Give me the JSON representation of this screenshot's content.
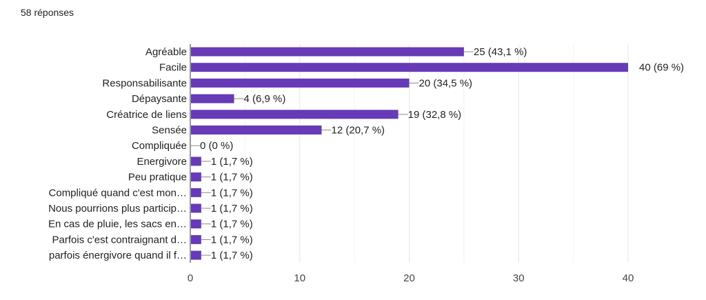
{
  "response_count": "58 réponses",
  "chart_data": {
    "type": "bar",
    "orientation": "horizontal",
    "categories": [
      "Agréable",
      "Facile",
      "Responsabilisante",
      "Dépaysante",
      "Créatrice de liens",
      "Sensée",
      "Compliquée",
      "Energivore",
      "Peu pratique",
      "Compliqué quand c'est mon…",
      "Nous pourrions plus particip…",
      "En cas de pluie, les sacs en…",
      "Parfois c'est contraignant d…",
      "parfois énergivore quand il f…"
    ],
    "values": [
      25,
      40,
      20,
      4,
      19,
      12,
      0,
      1,
      1,
      1,
      1,
      1,
      1,
      1
    ],
    "data_labels": [
      "25 (43,1 %)",
      "40 (69 %)",
      "20 (34,5 %)",
      "4 (6,9 %)",
      "19 (32,8 %)",
      "12 (20,7 %)",
      "0 (0 %)",
      "1 (1,7 %)",
      "1 (1,7 %)",
      "1 (1,7 %)",
      "1 (1,7 %)",
      "1 (1,7 %)",
      "1 (1,7 %)",
      "1 (1,7 %)"
    ],
    "xlim": [
      0,
      40
    ],
    "xticks": [
      "0",
      "10",
      "20",
      "30",
      "40"
    ],
    "grid": true,
    "bar_color": "#673ab7"
  }
}
